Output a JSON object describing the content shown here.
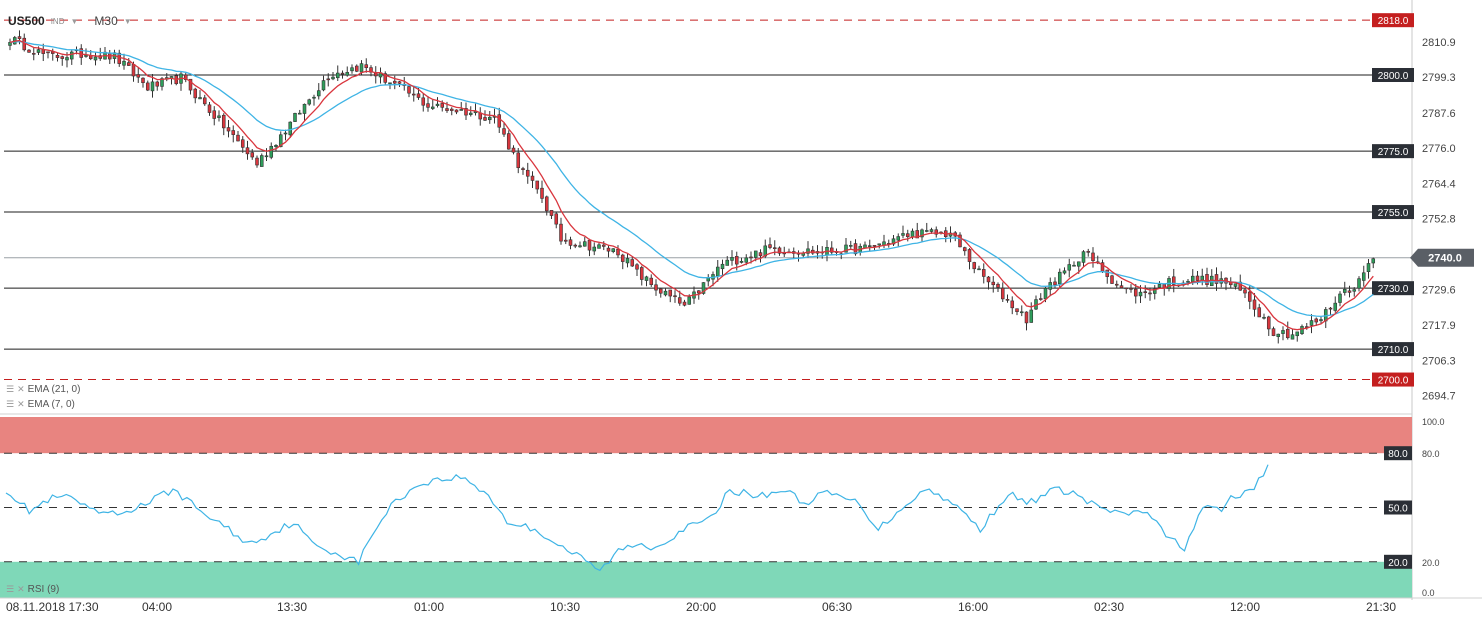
{
  "header": {
    "symbol": "US500",
    "market": "IND",
    "timeframe": "M30"
  },
  "indicators": {
    "ema21_label": "EMA (21, 0)",
    "ema7_label": "EMA (7, 0)",
    "rsi_label": "RSI (9)"
  },
  "colors": {
    "bull": "#2e9e5b",
    "bear": "#d9363e",
    "ema_fast": "#d9363e",
    "ema_slow": "#3fb4e5",
    "rsi_line": "#3fb4e5",
    "overbought_zone": "#e88480",
    "oversold_zone": "#7fd8b8",
    "dark_tag": "#2b2f36",
    "red_tag": "#c41f1f"
  },
  "chart_data": [
    {
      "type": "candlestick",
      "timeframe": "M30",
      "ylim": [
        2690,
        2822
      ],
      "y_ticks": [
        "2810.9",
        "2799.3",
        "2787.6",
        "2776.0",
        "2764.4",
        "2752.8",
        "2741.2",
        "2729.6",
        "2717.9",
        "2706.3",
        "2694.7"
      ],
      "x_tick_labels": [
        "08.11.2018 17:30",
        "04:00",
        "13:30",
        "01:00",
        "10:30",
        "20:00",
        "06:30",
        "16:00",
        "02:30",
        "12:00",
        "21:30"
      ],
      "current_price": "2740.0",
      "horizontal_lines": [
        {
          "value": 2818.0,
          "label": "2818.0",
          "style": "dashed",
          "color": "red"
        },
        {
          "value": 2800.0,
          "label": "2800.0",
          "style": "solid",
          "color": "dark"
        },
        {
          "value": 2775.0,
          "label": "2775.0",
          "style": "solid",
          "color": "dark"
        },
        {
          "value": 2755.0,
          "label": "2755.0",
          "style": "solid",
          "color": "dark"
        },
        {
          "value": 2730.0,
          "label": "2730.0",
          "style": "solid",
          "color": "dark"
        },
        {
          "value": 2710.0,
          "label": "2710.0",
          "style": "solid",
          "color": "dark"
        },
        {
          "value": 2700.0,
          "label": "2700.0",
          "style": "dashed",
          "color": "red"
        }
      ],
      "anchors": [
        [
          0,
          2812
        ],
        [
          8,
          2806
        ],
        [
          16,
          2807
        ],
        [
          22,
          2806
        ],
        [
          29,
          2796
        ],
        [
          36,
          2799
        ],
        [
          44,
          2785
        ],
        [
          52,
          2771
        ],
        [
          58,
          2782
        ],
        [
          67,
          2800
        ],
        [
          74,
          2803
        ],
        [
          82,
          2796
        ],
        [
          88,
          2790
        ],
        [
          96,
          2788
        ],
        [
          102,
          2786
        ],
        [
          108,
          2768
        ],
        [
          112,
          2760
        ],
        [
          116,
          2746
        ],
        [
          122,
          2744
        ],
        [
          128,
          2742
        ],
        [
          132,
          2735
        ],
        [
          136,
          2730
        ],
        [
          142,
          2724
        ],
        [
          150,
          2738
        ],
        [
          160,
          2743
        ],
        [
          170,
          2742
        ],
        [
          180,
          2743
        ],
        [
          190,
          2748
        ],
        [
          198,
          2748
        ],
        [
          204,
          2735
        ],
        [
          210,
          2726
        ],
        [
          214,
          2720
        ],
        [
          218,
          2730
        ],
        [
          222,
          2735
        ],
        [
          226,
          2742
        ],
        [
          234,
          2730
        ],
        [
          238,
          2728
        ],
        [
          244,
          2732
        ],
        [
          250,
          2733
        ],
        [
          256,
          2732
        ],
        [
          260,
          2728
        ],
        [
          266,
          2716
        ],
        [
          270,
          2715
        ],
        [
          276,
          2720
        ],
        [
          280,
          2728
        ],
        [
          284,
          2732
        ],
        [
          287,
          2741
        ]
      ]
    },
    {
      "type": "line",
      "name": "RSI (9)",
      "ylim": [
        0,
        100
      ],
      "levels": [
        {
          "value": 80,
          "label": "80.0"
        },
        {
          "value": 50,
          "label": "50.0"
        },
        {
          "value": 20,
          "label": "20.0"
        }
      ],
      "y_ticks": [
        "100.0",
        "80.0",
        "20.0",
        "0.0"
      ],
      "last_value": 72,
      "anchors": [
        [
          0,
          60
        ],
        [
          5,
          48
        ],
        [
          10,
          55
        ],
        [
          14,
          56
        ],
        [
          18,
          48
        ],
        [
          24,
          46
        ],
        [
          30,
          52
        ],
        [
          36,
          60
        ],
        [
          42,
          48
        ],
        [
          48,
          38
        ],
        [
          52,
          30
        ],
        [
          56,
          34
        ],
        [
          62,
          42
        ],
        [
          66,
          30
        ],
        [
          72,
          24
        ],
        [
          76,
          20
        ],
        [
          80,
          40
        ],
        [
          84,
          54
        ],
        [
          90,
          64
        ],
        [
          98,
          67
        ],
        [
          104,
          57
        ],
        [
          108,
          42
        ],
        [
          114,
          38
        ],
        [
          120,
          28
        ],
        [
          124,
          22
        ],
        [
          128,
          15
        ],
        [
          132,
          26
        ],
        [
          136,
          30
        ],
        [
          140,
          28
        ],
        [
          146,
          38
        ],
        [
          152,
          44
        ],
        [
          156,
          60
        ],
        [
          162,
          56
        ],
        [
          168,
          60
        ],
        [
          172,
          52
        ],
        [
          176,
          58
        ],
        [
          180,
          56
        ],
        [
          184,
          52
        ],
        [
          188,
          38
        ],
        [
          194,
          52
        ],
        [
          198,
          60
        ],
        [
          202,
          56
        ],
        [
          206,
          48
        ],
        [
          210,
          38
        ],
        [
          216,
          58
        ],
        [
          220,
          52
        ],
        [
          226,
          60
        ],
        [
          230,
          58
        ],
        [
          234,
          52
        ],
        [
          240,
          46
        ],
        [
          246,
          48
        ],
        [
          250,
          34
        ],
        [
          254,
          28
        ],
        [
          258,
          50
        ],
        [
          262,
          48
        ],
        [
          264,
          56
        ],
        [
          268,
          58
        ],
        [
          272,
          72
        ]
      ]
    }
  ]
}
